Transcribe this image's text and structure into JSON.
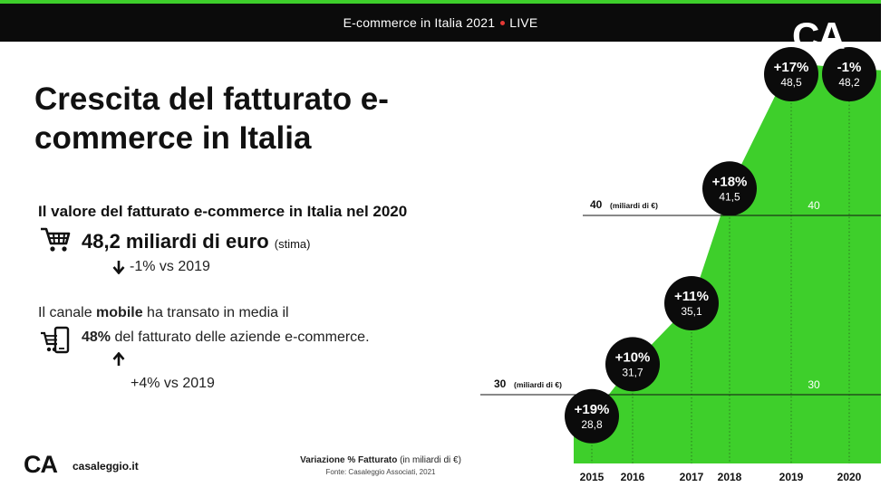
{
  "header": {
    "title": "E-commerce in Italia 2021",
    "live": "LIVE",
    "logo": "CA"
  },
  "main": {
    "title": "Crescita del fatturato e-commerce in Italia",
    "revenue_heading": "Il valore del fatturato e-commerce in Italia nel 2020",
    "revenue_value": "48,2 miliardi di euro",
    "revenue_note": "(stima)",
    "revenue_change": "-1% vs 2019",
    "mobile_line1_pre": "Il canale ",
    "mobile_line1_bold": "mobile",
    "mobile_line1_post": " ha transato in media il",
    "mobile_pct": "48%",
    "mobile_line2": " del fatturato delle aziende e-commerce.",
    "mobile_change": "+4% vs 2019"
  },
  "footer": {
    "logo": "CA",
    "site": "casaleggio.it",
    "caption_bold": "Variazione % Fatturato",
    "caption_rest": " (in miliardi di €)",
    "source": "Fonte: Casaleggio Associati, 2021"
  },
  "colors": {
    "accent": "#3ecf2b",
    "dark": "#0b0b0b",
    "live": "#e53935"
  },
  "icons": [
    "cart-icon",
    "mobile-cart-icon",
    "arrow-down-icon",
    "arrow-up-icon"
  ],
  "chart_data": {
    "type": "area",
    "x": [
      "2015",
      "2016",
      "2017",
      "2018",
      "2019",
      "2020"
    ],
    "values": [
      28.8,
      31.7,
      35.1,
      41.5,
      48.5,
      48.2
    ],
    "value_labels": [
      "28,8",
      "31,7",
      "35,1",
      "41,5",
      "48,5",
      "48,2"
    ],
    "pct_labels": [
      "+19%",
      "+10%",
      "+11%",
      "+18%",
      "+17%",
      "-1%"
    ],
    "reference_lines": [
      {
        "value": 30,
        "label": "30",
        "unit": "(miliardi di €)",
        "right_label": "30"
      },
      {
        "value": 40,
        "label": "40",
        "unit": "(miliardi di €)",
        "right_label": "40"
      }
    ],
    "grid": false,
    "legend": "none"
  }
}
